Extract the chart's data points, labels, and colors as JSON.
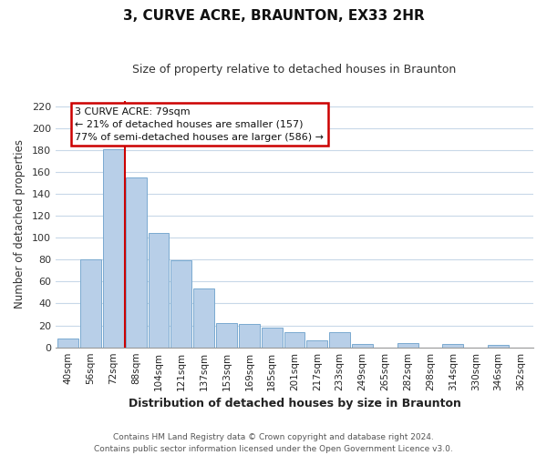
{
  "title": "3, CURVE ACRE, BRAUNTON, EX33 2HR",
  "subtitle": "Size of property relative to detached houses in Braunton",
  "xlabel": "Distribution of detached houses by size in Braunton",
  "ylabel": "Number of detached properties",
  "bar_labels": [
    "40sqm",
    "56sqm",
    "72sqm",
    "88sqm",
    "104sqm",
    "121sqm",
    "137sqm",
    "153sqm",
    "169sqm",
    "185sqm",
    "201sqm",
    "217sqm",
    "233sqm",
    "249sqm",
    "265sqm",
    "282sqm",
    "298sqm",
    "314sqm",
    "330sqm",
    "346sqm",
    "362sqm"
  ],
  "bar_values": [
    8,
    80,
    181,
    155,
    104,
    79,
    54,
    22,
    21,
    18,
    14,
    6,
    14,
    3,
    0,
    4,
    0,
    3,
    0,
    2,
    0
  ],
  "bar_color": "#b8cfe8",
  "bar_edge_color": "#7aaad0",
  "ylim": [
    0,
    225
  ],
  "yticks": [
    0,
    20,
    40,
    60,
    80,
    100,
    120,
    140,
    160,
    180,
    200,
    220
  ],
  "annotation_line1": "3 CURVE ACRE: 79sqm",
  "annotation_line2": "← 21% of detached houses are smaller (157)",
  "annotation_line3": "77% of semi-detached houses are larger (586) →",
  "footer_line1": "Contains HM Land Registry data © Crown copyright and database right 2024.",
  "footer_line2": "Contains public sector information licensed under the Open Government Licence v3.0.",
  "background_color": "#ffffff",
  "grid_color": "#c8d8e8",
  "red_line_color": "#cc0000"
}
